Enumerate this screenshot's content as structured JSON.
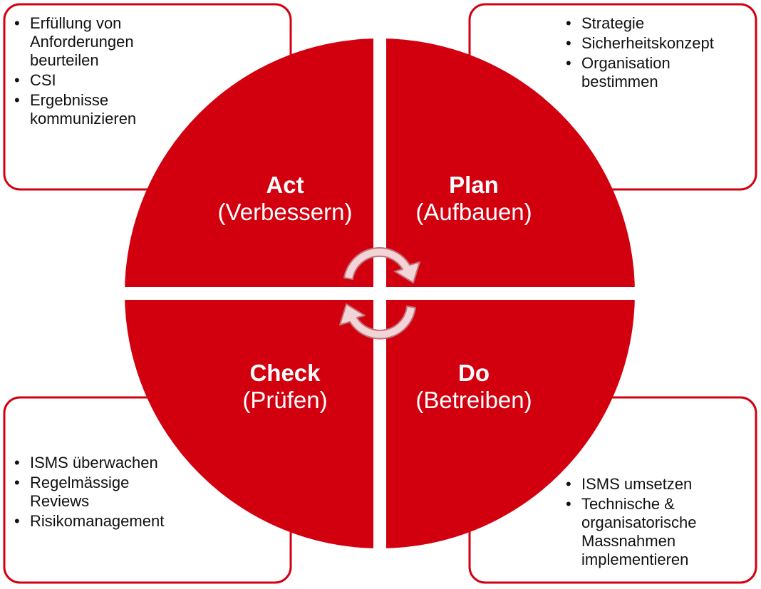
{
  "colors": {
    "accent": "#d2000f",
    "arrow_fill": "#f2d4d6",
    "arrow_stroke": "#c0707a"
  },
  "quadrants": {
    "act": {
      "title": "Act",
      "subtitle": "(Verbessern)"
    },
    "plan": {
      "title": "Plan",
      "subtitle": "(Aufbauen)"
    },
    "check": {
      "title": "Check",
      "subtitle": "(Prüfen)"
    },
    "do": {
      "title": "Do",
      "subtitle": "(Betreiben)"
    }
  },
  "boxes": {
    "act": {
      "items": [
        "Erfüllung von Anforderungen beurteilen",
        "CSI",
        "Ergebnisse kommunizieren"
      ]
    },
    "plan": {
      "items": [
        "Strategie",
        "Sicherheitskonzept",
        "Organisation bestimmen"
      ]
    },
    "check": {
      "items": [
        "ISMS überwachen",
        "Regelmässige Reviews",
        "Risikomanagement"
      ]
    },
    "do": {
      "items": [
        "ISMS umsetzen",
        "Technische & organisatorische Massnahmen implementieren"
      ]
    }
  },
  "cycle_icon": "circular-arrows-icon"
}
